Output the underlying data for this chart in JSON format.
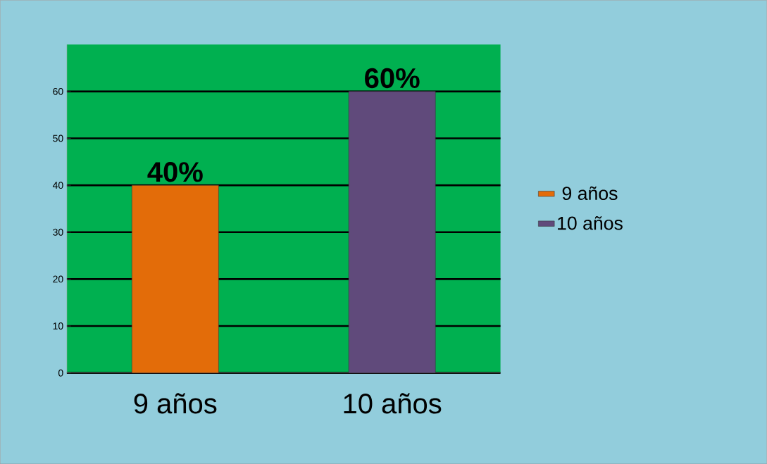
{
  "chart_data": {
    "type": "bar",
    "categories": [
      "9 años",
      "10 años"
    ],
    "series": [
      {
        "name": "9 años",
        "color": "#e36c09",
        "values": [
          40,
          null
        ],
        "value_labels": [
          "40%",
          null
        ]
      },
      {
        "name": "10 años",
        "color": "#604a7b",
        "values": [
          null,
          60
        ],
        "value_labels": [
          null,
          "60%"
        ]
      }
    ],
    "ylim": [
      0,
      70
    ],
    "yticks": [
      0,
      10,
      20,
      30,
      40,
      50,
      60
    ],
    "grid": "y",
    "legend": "right"
  }
}
